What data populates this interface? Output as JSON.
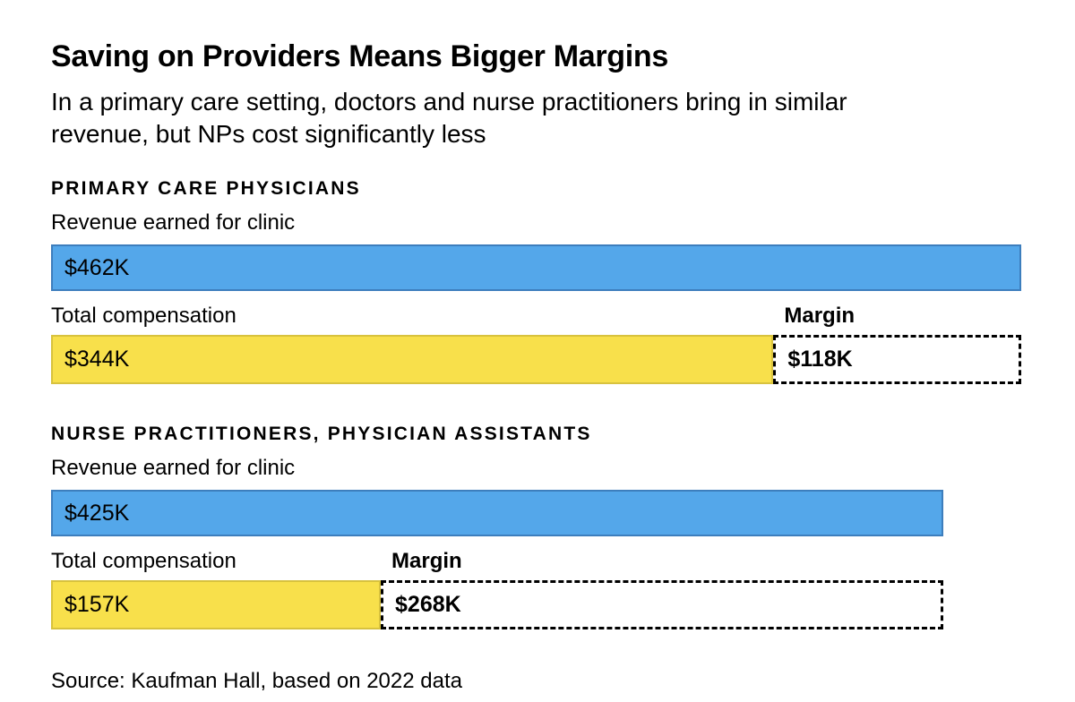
{
  "header": {
    "title": "Saving on Providers Means Bigger Margins",
    "subtitle_line1": "In a primary care setting, doctors and nurse practitioners bring in similar",
    "subtitle_line2": "revenue, but NPs cost significantly less"
  },
  "colors": {
    "revenue_fill": "#54a7ea",
    "revenue_border": "#3d7ebd",
    "compensation_fill": "#f8e04b",
    "compensation_border": "#d8c23e",
    "margin_border": "#000000",
    "text": "#000000",
    "background": "#ffffff"
  },
  "chart_data": {
    "type": "bar",
    "orientation": "horizontal",
    "unit": "USD thousands",
    "max_value": 462,
    "title": "Saving on Providers Means Bigger Margins",
    "subtitle": "In a primary care setting, doctors and nurse practitioners bring in similar revenue, but NPs cost significantly less",
    "source": "Source: Kaufman Hall, based on 2022 data",
    "groups": [
      {
        "name": "PRIMARY CARE PHYSICIANS",
        "revenue_label": "Revenue earned for clinic",
        "revenue_value": 462,
        "revenue_display": "$462K",
        "compensation_label": "Total compensation",
        "compensation_value": 344,
        "compensation_display": "$344K",
        "margin_label": "Margin",
        "margin_value": 118,
        "margin_display": "$118K"
      },
      {
        "name": "NURSE PRACTITIONERS, PHYSICIAN ASSISTANTS",
        "revenue_label": "Revenue earned for clinic",
        "revenue_value": 425,
        "revenue_display": "$425K",
        "compensation_label": "Total compensation",
        "compensation_value": 157,
        "compensation_display": "$157K",
        "margin_label": "Margin",
        "margin_value": 268,
        "margin_display": "$268K"
      }
    ]
  }
}
